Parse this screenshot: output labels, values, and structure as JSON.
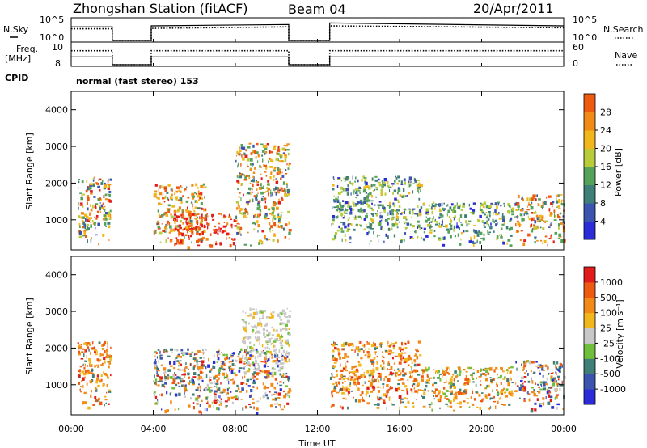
{
  "header": {
    "station": "Zhongshan Station (fitACF)",
    "beam": "Beam 04",
    "date": "20/Apr/2011"
  },
  "colors": {
    "power_scale": [
      "#2b2bd9",
      "#3a54b0",
      "#3f7f78",
      "#55a35a",
      "#b8cc3a",
      "#f2b71a",
      "#f28a16",
      "#ee5a10",
      "#e21b1b"
    ],
    "velocity_scale": [
      "#e21b1b",
      "#ee5a10",
      "#f28a16",
      "#f2b71a",
      "#c8c8c8",
      "#6fbf3d",
      "#3f7f78",
      "#3a54b0",
      "#2b2bd9"
    ]
  },
  "chart_data": [
    {
      "type": "line",
      "title": "",
      "left_label": "N.Sky",
      "right_label": "N.Search",
      "left_ticks": [
        "10^5",
        "10^0"
      ],
      "right_ticks": [
        "10^5",
        "10^0"
      ],
      "note": "",
      "series": [
        {
          "values": [
            [
              0,
              0.7
            ],
            [
              2,
              0.7
            ],
            [
              2,
              0
            ],
            [
              3.9,
              0
            ],
            [
              3.9,
              0.75
            ],
            [
              10.6,
              0.82
            ],
            [
              10.6,
              0
            ],
            [
              12.6,
              0
            ],
            [
              12.6,
              0.9
            ],
            [
              24,
              0.75
            ]
          ]
        },
        {
          "values": [
            [
              0,
              0.6
            ],
            [
              2,
              0.6
            ],
            [
              2,
              0
            ],
            [
              3.9,
              0
            ],
            [
              3.9,
              0.62
            ],
            [
              10.6,
              0.7
            ],
            [
              10.6,
              0
            ],
            [
              12.6,
              0
            ],
            [
              12.6,
              0.75
            ],
            [
              24,
              0.65
            ]
          ]
        }
      ],
      "ylim": [
        0,
        1
      ],
      "xlim": [
        0,
        24
      ]
    },
    {
      "type": "line",
      "left_label": "Freq.\n[MHz]",
      "right_label": "Nave",
      "left_ticks": [
        "10",
        "8"
      ],
      "right_ticks": [
        "60",
        "0"
      ],
      "series": [
        {
          "values": [
            [
              0,
              0.4
            ],
            [
              2,
              0.4
            ],
            [
              2,
              0
            ],
            [
              3.9,
              0
            ],
            [
              3.9,
              0.4
            ],
            [
              10.6,
              0.4
            ],
            [
              10.6,
              0
            ],
            [
              12.6,
              0
            ],
            [
              12.6,
              0.4
            ],
            [
              24,
              0.4
            ]
          ]
        },
        {
          "values": [
            [
              0,
              0.72
            ],
            [
              2,
              0.72
            ],
            [
              2,
              0
            ],
            [
              3.9,
              0
            ],
            [
              3.9,
              0.72
            ],
            [
              10.6,
              0.72
            ],
            [
              10.6,
              0
            ],
            [
              12.6,
              0
            ],
            [
              12.6,
              0.72
            ],
            [
              24,
              0.72
            ]
          ]
        }
      ],
      "ylim": [
        0,
        1
      ],
      "xlim": [
        0,
        24
      ]
    },
    {
      "type": "table",
      "label": "CPID",
      "text": "normal (fast stereo) 153"
    },
    {
      "type": "heatmap",
      "ylabel": "Slant Range [km]",
      "y_ticks": [
        "1000",
        "2000",
        "3000",
        "4000"
      ],
      "ylim": [
        180,
        4500
      ],
      "xlim": [
        0,
        24
      ],
      "colorbar_label": "Power [dB]",
      "colorbar_ticks": [
        "4",
        "8",
        "12",
        "16",
        "20",
        "24",
        "28"
      ],
      "blobs": [
        {
          "t": [
            0.3,
            1.9
          ],
          "r": [
            350,
            2200
          ],
          "c": "mix_power_a"
        },
        {
          "t": [
            4.0,
            6.5
          ],
          "r": [
            250,
            2000
          ],
          "c": "mix_power_b"
        },
        {
          "t": [
            5.0,
            8.0
          ],
          "r": [
            250,
            1200
          ],
          "c": "red"
        },
        {
          "t": [
            8.0,
            10.6
          ],
          "r": [
            250,
            3100
          ],
          "c": "mix_power_a"
        },
        {
          "t": [
            12.6,
            17.0
          ],
          "r": [
            300,
            2200
          ],
          "c": "mix_power_c"
        },
        {
          "t": [
            17.0,
            21.5
          ],
          "r": [
            300,
            1500
          ],
          "c": "mix_power_c"
        },
        {
          "t": [
            21.6,
            24.0
          ],
          "r": [
            300,
            1700
          ],
          "c": "mix_power_a"
        }
      ]
    },
    {
      "type": "heatmap",
      "ylabel": "Slant Range [km]",
      "y_ticks": [
        "1000",
        "2000",
        "3000",
        "4000"
      ],
      "ylim": [
        180,
        4500
      ],
      "xlim": [
        0,
        24
      ],
      "xlabel": "Time UT",
      "x_ticks": [
        "00:00",
        "04:00",
        "08:00",
        "12:00",
        "16:00",
        "20:00",
        "00:00"
      ],
      "colorbar_label": "Velocity [m s⁻¹]",
      "colorbar_ticks": [
        "1000",
        "500",
        "100",
        "25",
        "-25",
        "-100",
        "-500",
        "-1000"
      ],
      "blobs": [
        {
          "t": [
            0.3,
            1.9
          ],
          "r": [
            350,
            2200
          ],
          "c": "mix_vel_a"
        },
        {
          "t": [
            4.0,
            10.6
          ],
          "r": [
            250,
            2000
          ],
          "c": "mix_vel_b"
        },
        {
          "t": [
            8.3,
            10.6
          ],
          "r": [
            1200,
            3100
          ],
          "c": "gray"
        },
        {
          "t": [
            12.6,
            17.0
          ],
          "r": [
            300,
            2200
          ],
          "c": "mix_vel_a"
        },
        {
          "t": [
            17.0,
            21.5
          ],
          "r": [
            300,
            1500
          ],
          "c": "mix_vel_c"
        },
        {
          "t": [
            21.6,
            24.0
          ],
          "r": [
            300,
            1700
          ],
          "c": "mix_vel_b"
        }
      ]
    }
  ]
}
